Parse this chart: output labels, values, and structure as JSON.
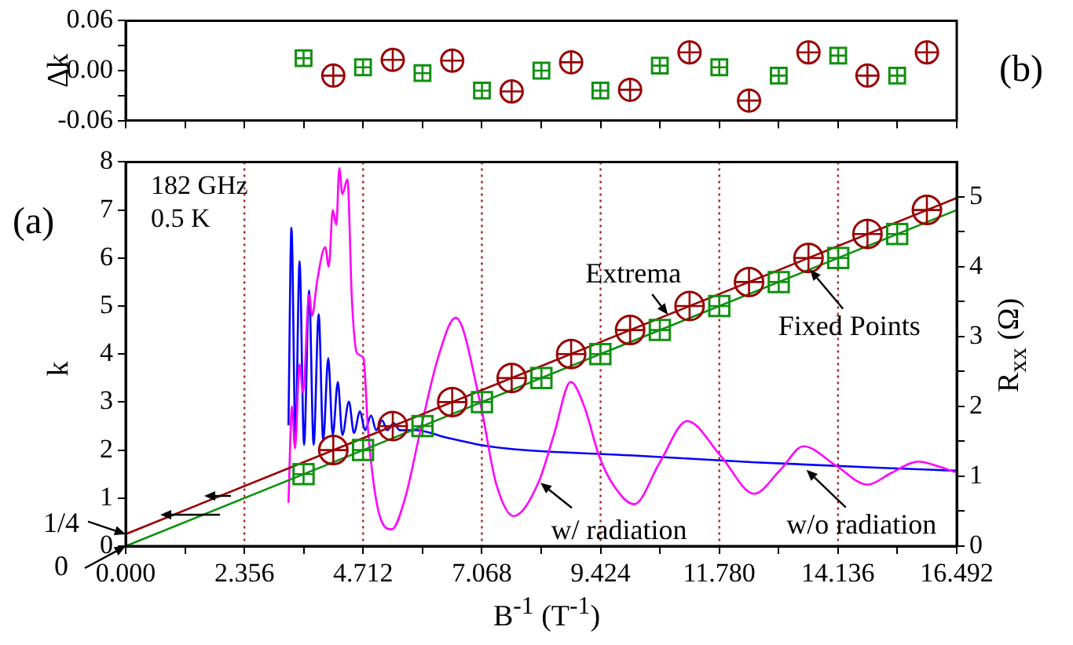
{
  "chart_data": [
    {
      "type": "scatter",
      "ylabel": "Δk",
      "annotations": [
        "(b)"
      ],
      "xlim": [
        0,
        16.492
      ],
      "xticks": [
        0,
        {
          "value": 1.178,
          "label": null
        },
        2.356,
        {
          "value": 3.534,
          "label": null
        },
        4.712,
        {
          "value": 5.89,
          "label": null
        },
        7.068,
        {
          "value": 8.246,
          "label": null
        },
        9.424,
        {
          "value": 10.602,
          "label": null
        },
        11.78,
        {
          "value": 12.958,
          "label": null
        },
        14.136,
        {
          "value": 15.314,
          "label": null
        },
        16.492
      ],
      "ylim": [
        -0.06,
        0.06
      ],
      "yticks": [
        {
          "value": -0.06,
          "label": "-0.06"
        },
        {
          "value": -0.03,
          "label": null
        },
        {
          "value": 0,
          "label": "0.00"
        },
        {
          "value": 0.03,
          "label": null
        },
        {
          "value": 0.06,
          "label": "0.06"
        }
      ],
      "tick_labels": "y",
      "series": [
        {
          "type": "scatter",
          "marker": "circle",
          "color": "#990000",
          "x": [
            4.12,
            5.3,
            6.48,
            7.66,
            8.84,
            10.01,
            11.19,
            12.37,
            13.55,
            14.72,
            15.9
          ],
          "values": [
            -0.006,
            0.013,
            0.012,
            -0.025,
            0.01,
            -0.023,
            0.022,
            -0.036,
            0.022,
            -0.006,
            0.022
          ]
        },
        {
          "type": "scatter",
          "marker": "square",
          "color": "#109010",
          "x": [
            3.53,
            4.71,
            5.89,
            7.07,
            8.25,
            9.42,
            10.6,
            11.78,
            12.96,
            14.14,
            15.31
          ],
          "values": [
            0.015,
            0.004,
            -0.003,
            -0.024,
            0,
            -0.024,
            0.006,
            0.004,
            -0.006,
            0.018,
            -0.006
          ]
        }
      ]
    },
    {
      "type": "scatter",
      "xlabel": "B$^{-1}$ (T$^{-1}$)",
      "ylabel": "k",
      "y2label": "R$_{xx}$ (Ω)",
      "annotations": [
        "182 GHz",
        "0.5 K",
        "(a)",
        {
          "text": "Extrema",
          "x": 10.76,
          "y": 4.82
        },
        {
          "text": "Fixed Points",
          "x": 13.58,
          "y": 5.76
        },
        {
          "text": "w/ radiation",
          "x": 8.23,
          "y": 1.32
        },
        {
          "text": "w/o radiation",
          "x": 13.51,
          "y": 1.59
        },
        {
          "text": "1/4",
          "x": 0,
          "y": 0.25
        },
        {
          "text": "0",
          "x": 0,
          "y": 0
        }
      ],
      "xlim": [
        0,
        16.492
      ],
      "xticks": [
        {
          "value": 0,
          "label": "0.000"
        },
        {
          "value": 1.178,
          "label": null
        },
        {
          "value": 2.356,
          "label": "2.356"
        },
        {
          "value": 3.534,
          "label": null
        },
        {
          "value": 4.712,
          "label": "4.712"
        },
        {
          "value": 5.89,
          "label": null
        },
        {
          "value": 7.068,
          "label": "7.068"
        },
        {
          "value": 8.246,
          "label": null
        },
        {
          "value": 9.424,
          "label": "9.424"
        },
        {
          "value": 10.602,
          "label": null
        },
        {
          "value": 11.78,
          "label": "11.780"
        },
        {
          "value": 12.958,
          "label": null
        },
        {
          "value": 14.136,
          "label": "14.136"
        },
        {
          "value": 15.314,
          "label": null
        },
        {
          "value": 16.492,
          "label": "16.492"
        }
      ],
      "ylim": [
        0,
        8
      ],
      "yticks": [
        0,
        1,
        2,
        3,
        4,
        5,
        6,
        7,
        8
      ],
      "y2lim": [
        0,
        5.5
      ],
      "y2ticks": [
        0,
        {
          "value": 0.5,
          "label": null
        },
        1,
        {
          "value": 1.5,
          "label": null
        },
        2,
        {
          "value": 2.5,
          "label": null
        },
        3,
        {
          "value": 3.5,
          "label": null
        },
        4,
        {
          "value": 4.5,
          "label": null
        },
        5
      ],
      "ref_lines": [
        {
          "axis": "x",
          "value": 2.356,
          "color": "#a0282a",
          "line_style": "dotted"
        },
        {
          "axis": "x",
          "value": 4.712,
          "color": "#a0282a",
          "line_style": "dotted"
        },
        {
          "axis": "x",
          "value": 7.068,
          "color": "#a0282a",
          "line_style": "dotted"
        },
        {
          "axis": "x",
          "value": 9.424,
          "color": "#a0282a",
          "line_style": "dotted"
        },
        {
          "axis": "x",
          "value": 11.78,
          "color": "#a0282a",
          "line_style": "dotted"
        },
        {
          "axis": "x",
          "value": 14.136,
          "color": "#a0282a",
          "line_style": "dotted"
        }
      ],
      "series": [
        {
          "type": "scatter",
          "marker": "circle",
          "color": "#990000",
          "x": [
            4.12,
            5.3,
            6.48,
            7.66,
            8.84,
            10.01,
            11.19,
            12.37,
            13.55,
            14.72,
            15.9
          ],
          "values": [
            2,
            2.5,
            3,
            3.5,
            4,
            4.5,
            5,
            5.5,
            6,
            6.5,
            7
          ]
        },
        {
          "type": "scatter",
          "marker": "square",
          "color": "#109010",
          "x": [
            3.53,
            4.71,
            5.89,
            7.07,
            8.25,
            9.42,
            10.6,
            11.78,
            12.96,
            14.14,
            15.31
          ],
          "values": [
            1.5,
            2,
            2.5,
            3,
            3.5,
            4,
            4.5,
            5,
            5.5,
            6,
            6.5
          ]
        },
        {
          "type": "line",
          "color": "#990000",
          "x": [
            0,
            16.492
          ],
          "values": [
            0.25,
            7.25
          ]
        },
        {
          "type": "line",
          "color": "#109010",
          "x": [
            0,
            16.492
          ],
          "values": [
            0,
            7
          ]
        },
        {
          "type": "line",
          "axis": "y2",
          "color": "#ff00ff",
          "x": [
            3.23,
            3.3,
            3.36,
            3.45,
            3.52,
            3.64,
            3.7,
            3.8,
            3.96,
            4.03,
            4.11,
            4.18,
            4.24,
            4.3,
            4.4,
            4.49,
            4.59,
            4.72,
            4.81,
            5.03,
            5.28,
            5.55,
            5.85,
            6.2,
            6.55,
            7.03,
            7.35,
            7.7,
            8.19,
            8.5,
            8.83,
            9.1,
            9.4,
            9.7,
            10.09,
            10.6,
            11.14,
            11.8,
            12.47,
            13,
            13.45,
            14.1,
            14.72,
            15.2,
            15.73,
            16.1,
            16.46
          ],
          "values": [
            0.62,
            2,
            1.4,
            2.6,
            2.2,
            3.6,
            3.3,
            3.8,
            4.28,
            4,
            4.81,
            4.6,
            5.41,
            5.04,
            5.25,
            3.52,
            2.76,
            2.69,
            1.66,
            0.46,
            0.24,
            0.7,
            1.66,
            2.7,
            3.27,
            2.07,
            0.9,
            0.43,
            0.91,
            1.6,
            2.35,
            2,
            1.28,
            0.85,
            0.6,
            1.2,
            1.79,
            1.3,
            0.75,
            1.1,
            1.43,
            1.15,
            0.88,
            1.05,
            1.21,
            1.15,
            1.06
          ]
        },
        {
          "type": "line",
          "axis": "y2",
          "color": "#0000ff",
          "x": [
            3.23,
            3.29,
            3.37,
            3.45,
            3.54,
            3.64,
            3.73,
            3.83,
            3.92,
            4.02,
            4.11,
            4.21,
            4.3,
            4.43,
            4.53,
            4.65,
            4.75,
            4.87,
            4.97,
            5.09,
            5.19,
            5.32,
            5.44,
            5.76,
            6.39,
            7.03,
            7.66,
            10,
            12.5,
            15,
            16.49
          ],
          "values": [
            1.73,
            4.56,
            1.52,
            4.08,
            1.45,
            3.66,
            1.45,
            3.32,
            1.52,
            2.69,
            1.59,
            2.35,
            1.59,
            2.07,
            1.62,
            1.93,
            1.66,
            1.87,
            1.66,
            1.8,
            1.66,
            1.76,
            1.66,
            1.66,
            1.55,
            1.45,
            1.39,
            1.3,
            1.2,
            1.12,
            1.08
          ]
        }
      ]
    }
  ]
}
